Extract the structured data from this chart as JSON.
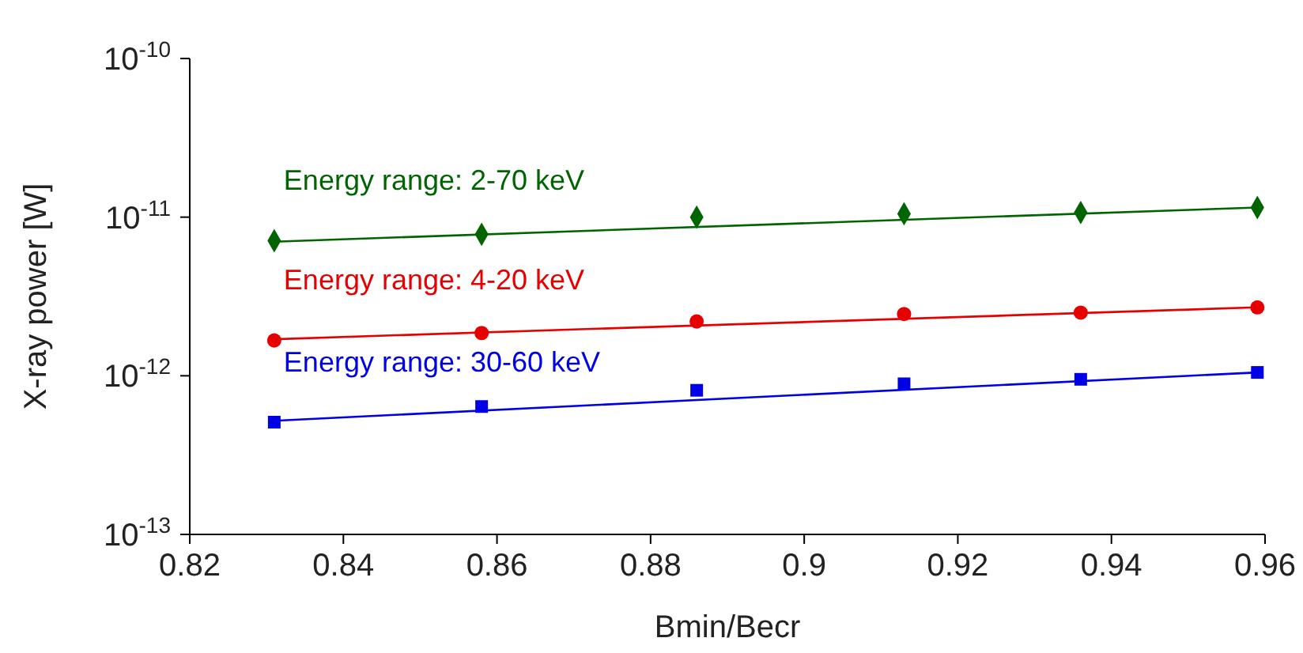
{
  "chart_data": {
    "type": "scatter",
    "xlabel": "Bmin/Becr",
    "ylabel": "X-ray power [W]",
    "log": "y",
    "xlim": [
      0.82,
      0.96
    ],
    "xticks": [
      {
        "value": 0.82,
        "label": "0.82"
      },
      {
        "value": 0.84,
        "label": "0.84"
      },
      {
        "value": 0.86,
        "label": "0.86"
      },
      {
        "value": 0.88,
        "label": "0.88"
      },
      {
        "value": 0.9,
        "label": "0.9"
      },
      {
        "value": 0.92,
        "label": "0.92"
      },
      {
        "value": 0.94,
        "label": "0.94"
      },
      {
        "value": 0.96,
        "label": "0.96"
      }
    ],
    "ylim": [
      1e-13,
      1e-10
    ],
    "yticks": [
      {
        "value": 1e-13,
        "label": "10$^{-13}$"
      },
      {
        "value": 1e-12,
        "label": "10$^{-12}$"
      },
      {
        "value": 1e-11,
        "label": "10$^{-11}$"
      },
      {
        "value": 1e-10,
        "label": "10$^{-10}$"
      }
    ],
    "series": [
      {
        "name": "Energy range: 2-70 keV",
        "marker": "diamond",
        "color": "#006400",
        "x": [
          0.831,
          0.858,
          0.886,
          0.913,
          0.936,
          0.959
        ],
        "values": [
          7.1e-12,
          7.8e-12,
          1e-11,
          1.05e-11,
          1.07e-11,
          1.15e-11
        ]
      },
      {
        "name": "Energy range: 4-20 keV",
        "marker": "circle",
        "color": "#e60000",
        "x": [
          0.831,
          0.858,
          0.886,
          0.913,
          0.936,
          0.959
        ],
        "values": [
          1.67e-12,
          1.86e-12,
          2.2e-12,
          2.45e-12,
          2.5e-12,
          2.7e-12
        ]
      },
      {
        "name": "Energy range: 30-60 keV",
        "marker": "square",
        "color": "#0000e6",
        "x": [
          0.831,
          0.858,
          0.886,
          0.913,
          0.936,
          0.959
        ],
        "values": [
          5.1e-13,
          6.4e-13,
          8.1e-13,
          8.9e-13,
          9.5e-13,
          1.05e-12
        ]
      },
      {
        "type": "line",
        "marker": "none",
        "color": "#006400",
        "x": [
          0.831,
          0.959
        ],
        "values": [
          7e-12,
          1.15e-11
        ]
      },
      {
        "type": "line",
        "marker": "none",
        "color": "#e60000",
        "x": [
          0.831,
          0.959
        ],
        "values": [
          1.7e-12,
          2.7e-12
        ]
      },
      {
        "type": "line",
        "marker": "none",
        "color": "#0000e6",
        "x": [
          0.831,
          0.959
        ],
        "values": [
          5.2e-13,
          1.05e-12
        ]
      }
    ]
  }
}
